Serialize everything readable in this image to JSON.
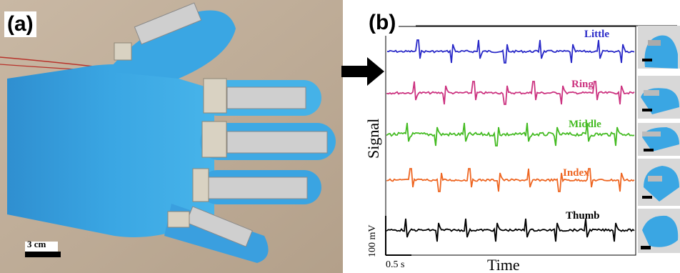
{
  "panel_a": {
    "label": "(a)",
    "scale_bar": "3 cm"
  },
  "panel_b": {
    "label": "(b)",
    "ylabel": "Signal",
    "xlabel": "Time",
    "scale_y": "100 mV",
    "scale_x": "0.5 s",
    "traces": [
      {
        "name": "Little",
        "color": "#2a2ac8"
      },
      {
        "name": "Ring",
        "color": "#cc3380"
      },
      {
        "name": "Middle",
        "color": "#44bb22"
      },
      {
        "name": "Index",
        "color": "#ee6622"
      },
      {
        "name": "Thumb",
        "color": "#000000"
      }
    ]
  }
}
